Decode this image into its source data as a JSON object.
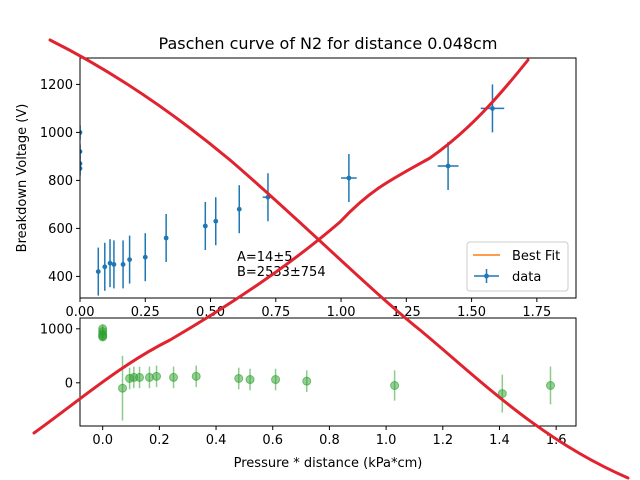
{
  "chart_data": [
    {
      "type": "line",
      "title": "Paschen curve of N2 for distance 0.048cm",
      "xlabel": "",
      "ylabel": "Breakdown Voltage (V)",
      "xlim": [
        0,
        1.9
      ],
      "ylim": [
        310,
        1310
      ],
      "xticks": [
        "0.00",
        "0.25",
        "0.50",
        "0.75",
        "1.00",
        "1.25",
        "1.50",
        "1.75"
      ],
      "xtick_values": [
        0,
        0.25,
        0.5,
        0.75,
        1.0,
        1.25,
        1.5,
        1.75
      ],
      "yticks": [
        "400",
        "600",
        "800",
        "1000",
        "1200"
      ],
      "ytick_values": [
        400,
        600,
        800,
        1000,
        1200
      ],
      "legend": {
        "placement": "lower-right",
        "entries": [
          "Best Fit",
          "data"
        ]
      },
      "annotation": [
        "A=14±5",
        "B=2533±754"
      ],
      "fit_params": {
        "A": 14,
        "B": 2533
      },
      "colors": {
        "fit": "#ff7f0e",
        "data": "#1f77b4",
        "overlay": "#e0232f"
      },
      "series": [
        {
          "name": "data",
          "points": [
            {
              "x": 0.0,
              "y": 1000,
              "yerr": 30
            },
            {
              "x": 0.0,
              "y": 920,
              "yerr": 30
            },
            {
              "x": 0.0,
              "y": 870,
              "yerr": 30
            },
            {
              "x": 0.0,
              "y": 850,
              "yerr": 30
            },
            {
              "x": 0.07,
              "y": 420,
              "yerr": 100
            },
            {
              "x": 0.095,
              "y": 440,
              "yerr": 100
            },
            {
              "x": 0.115,
              "y": 455,
              "yerr": 100
            },
            {
              "x": 0.13,
              "y": 450,
              "yerr": 100
            },
            {
              "x": 0.165,
              "y": 450,
              "yerr": 100
            },
            {
              "x": 0.19,
              "y": 470,
              "yerr": 100
            },
            {
              "x": 0.25,
              "y": 480,
              "yerr": 100
            },
            {
              "x": 0.33,
              "y": 560,
              "yerr": 100
            },
            {
              "x": 0.48,
              "y": 610,
              "yerr": 100
            },
            {
              "x": 0.52,
              "y": 630,
              "yerr": 100
            },
            {
              "x": 0.61,
              "y": 680,
              "yerr": 100
            },
            {
              "x": 0.72,
              "y": 730,
              "yerr": 100,
              "xerr": 0.02
            },
            {
              "x": 1.03,
              "y": 810,
              "yerr": 100,
              "xerr": 0.03
            },
            {
              "x": 1.41,
              "y": 860,
              "yerr": 100,
              "xerr": 0.04
            },
            {
              "x": 1.58,
              "y": 1100,
              "yerr": 100,
              "xerr": 0.045
            }
          ]
        },
        {
          "name": "Best Fit",
          "from_params": true
        }
      ]
    },
    {
      "type": "scatter",
      "title": "",
      "xlabel": "Pressure * distance (kPa*cm)",
      "ylabel": "",
      "xlim": [
        -0.08,
        1.67
      ],
      "ylim": [
        -800,
        1200
      ],
      "xticks": [
        "0.0",
        "0.2",
        "0.4",
        "0.6",
        "0.8",
        "1.0",
        "1.2",
        "1.4",
        "1.6"
      ],
      "xtick_values": [
        0,
        0.2,
        0.4,
        0.6,
        0.8,
        1.0,
        1.2,
        1.4,
        1.6
      ],
      "yticks": [
        "0",
        "1000"
      ],
      "ytick_values": [
        0,
        1000
      ],
      "colors": {
        "points": "#2ca02c"
      },
      "series": [
        {
          "name": "",
          "points": [
            {
              "x": 0.0,
              "y": 1000,
              "yerr": 80
            },
            {
              "x": 0.0,
              "y": 950,
              "yerr": 80
            },
            {
              "x": 0.0,
              "y": 900,
              "yerr": 80
            },
            {
              "x": 0.0,
              "y": 870,
              "yerr": 80
            },
            {
              "x": 0.0,
              "y": 850,
              "yerr": 80
            },
            {
              "x": 0.07,
              "y": -100,
              "yerr": 600
            },
            {
              "x": 0.095,
              "y": 80,
              "yerr": 200
            },
            {
              "x": 0.11,
              "y": 100,
              "yerr": 200
            },
            {
              "x": 0.13,
              "y": 100,
              "yerr": 200
            },
            {
              "x": 0.165,
              "y": 100,
              "yerr": 200
            },
            {
              "x": 0.19,
              "y": 120,
              "yerr": 200
            },
            {
              "x": 0.25,
              "y": 100,
              "yerr": 200
            },
            {
              "x": 0.33,
              "y": 120,
              "yerr": 200
            },
            {
              "x": 0.48,
              "y": 80,
              "yerr": 200
            },
            {
              "x": 0.52,
              "y": 60,
              "yerr": 200
            },
            {
              "x": 0.61,
              "y": 60,
              "yerr": 200
            },
            {
              "x": 0.72,
              "y": 30,
              "yerr": 200
            },
            {
              "x": 1.03,
              "y": -50,
              "yerr": 280
            },
            {
              "x": 1.41,
              "y": -200,
              "yerr": 350
            },
            {
              "x": 1.58,
              "y": -50,
              "yerr": 350
            }
          ]
        }
      ]
    }
  ]
}
